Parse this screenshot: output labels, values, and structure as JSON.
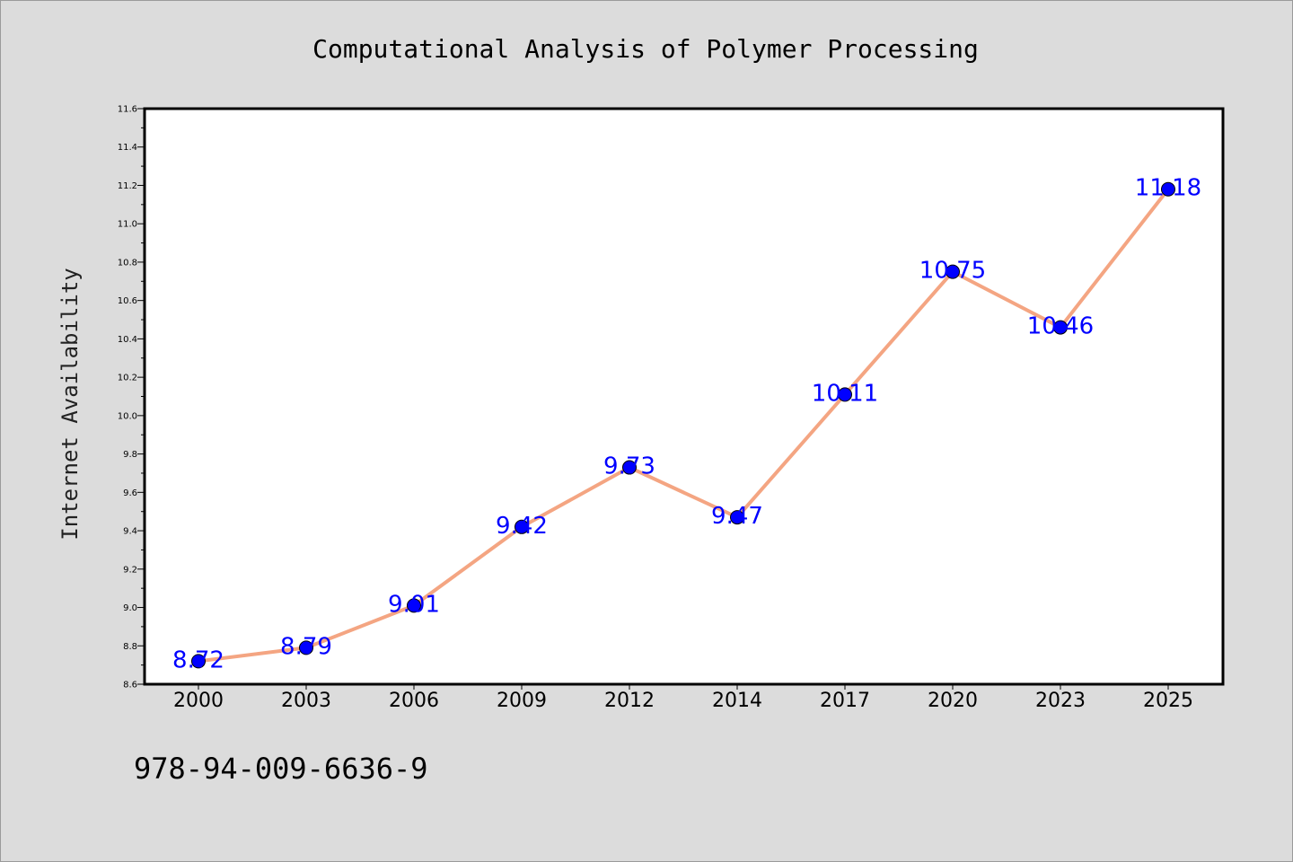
{
  "chart_data": {
    "type": "line",
    "title": "Computational Analysis of Polymer Processing",
    "xlabel": "",
    "ylabel": "Internet Availability",
    "categories": [
      "2000",
      "2003",
      "2006",
      "2009",
      "2012",
      "2014",
      "2017",
      "2020",
      "2023",
      "2025"
    ],
    "series": [
      {
        "values": [
          8.72,
          8.79,
          9.01,
          9.42,
          9.73,
          9.47,
          10.11,
          10.75,
          10.46,
          11.18
        ],
        "line_color": "#f4a582",
        "marker_color": "#0000ff"
      }
    ],
    "data_labels": [
      "8.72",
      "8.79",
      "9.01",
      "9.42",
      "9.73",
      "9.47",
      "10.11",
      "10.75",
      "10.46",
      "11.18"
    ],
    "data_label_color": "#0000ff",
    "ylim": [
      8.6,
      11.6
    ],
    "yticks": [
      "8.6",
      "8.8",
      "9.0",
      "9.2",
      "9.4",
      "9.6",
      "9.8",
      "10.0",
      "10.2",
      "10.4",
      "10.6",
      "10.8",
      "11.0",
      "11.2",
      "11.4",
      "11.6"
    ],
    "grid": false,
    "legend": "none"
  },
  "footer_text": "978-94-009-6636-9"
}
